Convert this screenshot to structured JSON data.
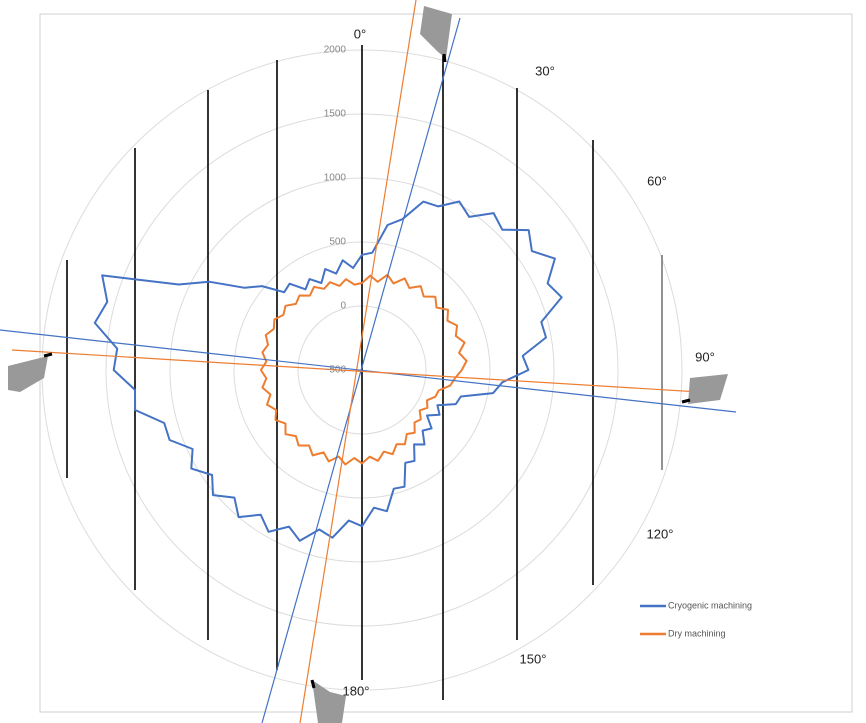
{
  "chart_data": {
    "type": "polar_line",
    "angle_labels": [
      "0°",
      "30°",
      "60°",
      "90°",
      "120°",
      "150°",
      "180°"
    ],
    "x": [
      0,
      5,
      10,
      15,
      20,
      25,
      30,
      35,
      40,
      45,
      50,
      55,
      60,
      65,
      70,
      75,
      80,
      85,
      90,
      95,
      100,
      105,
      110,
      115,
      120,
      125,
      130,
      135,
      140,
      145,
      150,
      155,
      160,
      165,
      170,
      175,
      180,
      185,
      190,
      195,
      200,
      205,
      210,
      215,
      220,
      225,
      230,
      235,
      240,
      245,
      250,
      255,
      260,
      265,
      270,
      275,
      280,
      285,
      290,
      295,
      300,
      305,
      310,
      315,
      320,
      325,
      330,
      335,
      340,
      345,
      350,
      355
    ],
    "series": [
      {
        "name": "Cryogenic machining",
        "color": "#4472c4",
        "values": [
          400,
          420,
          650,
          720,
          900,
          910,
          1020,
          960,
          1100,
          1050,
          1200,
          1120,
          1240,
          1100,
          1160,
          950,
          960,
          760,
          800,
          600,
          540,
          300,
          280,
          150,
          200,
          120,
          210,
          170,
          260,
          210,
          320,
          300,
          470,
          460,
          620,
          580,
          720,
          680,
          830,
          790,
          920,
          850,
          960,
          880,
          1000,
          910,
          1020,
          930,
          1040,
          960,
          1100,
          1100,
          1300,
          1280,
          1440,
          1420,
          1620,
          1560,
          1660,
          1080,
          880,
          620,
          520,
          360,
          380,
          270,
          320,
          250,
          340,
          280,
          370,
          300
        ]
      },
      {
        "name": "Dry machining",
        "color": "#ed7d31",
        "values": [
          180,
          240,
          200,
          270,
          220,
          290,
          240,
          300,
          250,
          310,
          260,
          320,
          270,
          320,
          280,
          330,
          270,
          320,
          280,
          230,
          200,
          120,
          110,
          60,
          90,
          50,
          100,
          80,
          140,
          110,
          170,
          140,
          200,
          160,
          220,
          180,
          230,
          190,
          250,
          200,
          260,
          210,
          270,
          220,
          270,
          230,
          280,
          230,
          280,
          240,
          290,
          240,
          290,
          250,
          290,
          250,
          290,
          260,
          300,
          260,
          290,
          250,
          280,
          230,
          260,
          210,
          250,
          200,
          230,
          180,
          220,
          170
        ]
      }
    ],
    "ylim": [
      -500,
      2000
    ],
    "yticks": [
      -500,
      0,
      500,
      1000,
      1500,
      2000
    ],
    "grid": true,
    "legend": "lower right"
  }
}
